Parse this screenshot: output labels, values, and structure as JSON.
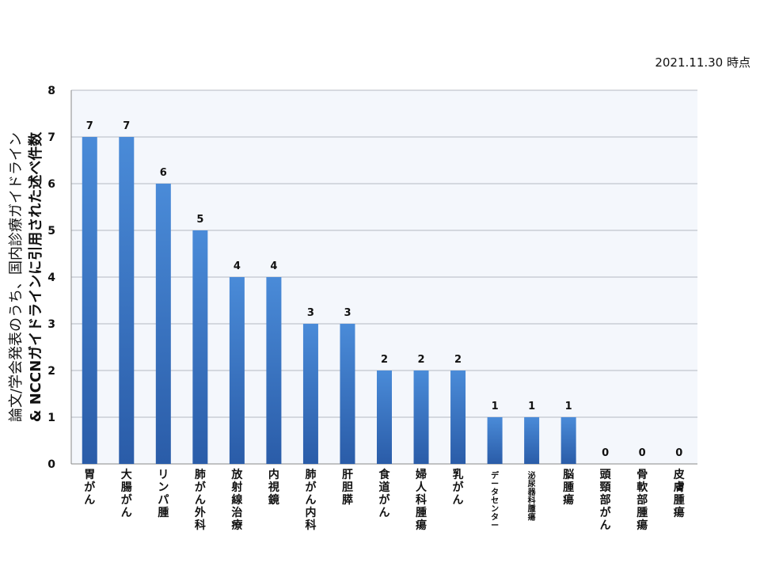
{
  "date_stamp": "2021.11.30 時点",
  "chart_data": {
    "type": "bar",
    "title": "",
    "ylabel_lines": [
      "論文/学会発表のうち、国内診療ガイドライン",
      "& NCCNガイドラインに引用された述べ件数"
    ],
    "xlabel": "",
    "ylim": [
      0,
      8
    ],
    "yticks": [
      0,
      1,
      2,
      3,
      4,
      5,
      6,
      7,
      8
    ],
    "grid": true,
    "categories": [
      "胃がん",
      "大腸がん",
      "リンパ腫",
      "肺がん外科",
      "放射線治療",
      "内視鏡",
      "肺がん内科",
      "肝胆膵",
      "食道がん",
      "婦人科腫瘍",
      "乳がん",
      "データセンター",
      "泌尿器科腫瘍",
      "脳腫瘍",
      "頭頸部がん",
      "骨軟部腫瘍",
      "皮膚腫瘍"
    ],
    "values": [
      7,
      7,
      6,
      5,
      4,
      4,
      3,
      3,
      2,
      2,
      2,
      1,
      1,
      1,
      0,
      0,
      0
    ],
    "data_labels": true,
    "colors": {
      "bar_top": "#4a8bd8",
      "bar_bottom": "#2a5ca8",
      "plot_bg": "#f4f7fc",
      "grid": "#b5b9c2"
    }
  }
}
